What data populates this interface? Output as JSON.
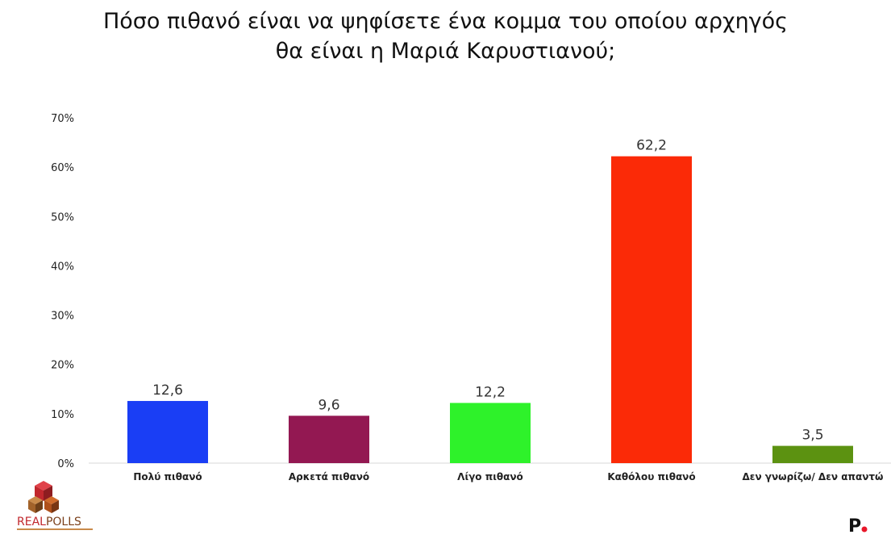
{
  "chart_data": {
    "type": "bar",
    "title_lines": [
      "Πόσο πιθανό είναι να ψηφίσετε ένα κομμα του οποίου αρχηγός",
      "θα είναι η Μαριά Καρυστιανού;"
    ],
    "categories": [
      "Πολύ πιθανό",
      "Αρκετά πιθανό",
      "Λίγο πιθανό",
      "Καθόλου πιθανό",
      "Δεν γνωρίζω/ Δεν απαντώ"
    ],
    "values": [
      12.6,
      9.6,
      12.2,
      62.2,
      3.5
    ],
    "value_labels": [
      "12,6",
      "9,6",
      "12,2",
      "62,2",
      "3,5"
    ],
    "colors": [
      "#1a3ef5",
      "#931852",
      "#2ef22a",
      "#fb2a07",
      "#5c9211"
    ],
    "ylim": [
      0,
      70
    ],
    "yticks": [
      0,
      10,
      20,
      30,
      40,
      50,
      60,
      70
    ],
    "ytick_labels": [
      "0%",
      "10%",
      "20%",
      "30%",
      "40%",
      "50%",
      "60%",
      "70%"
    ],
    "grid": false,
    "xlabel": "",
    "ylabel": ""
  },
  "branding": {
    "left_logo_text": "REALPOLLS",
    "left_logo_part1": "REAL",
    "left_logo_part2": "POLLS",
    "right_logo_text": "P."
  }
}
